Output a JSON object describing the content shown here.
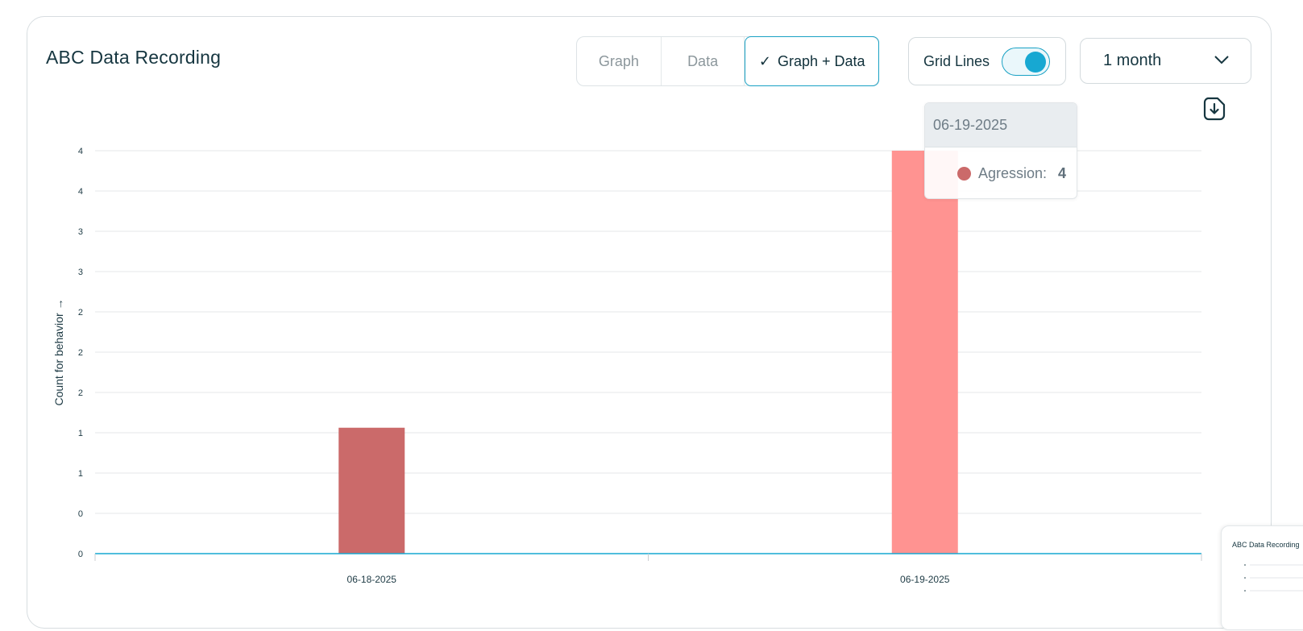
{
  "card": {
    "title": "ABC Data Recording"
  },
  "view_modes": {
    "graph_label": "Graph",
    "data_label": "Data",
    "graph_data_label": "Graph + Data",
    "active": "Graph + Data"
  },
  "grid_lines": {
    "label": "Grid Lines",
    "enabled": true
  },
  "range_select": {
    "value": "1 month"
  },
  "tooltip": {
    "date": "06-19-2025",
    "series_label": "Agression:",
    "value": "4"
  },
  "mini_card": {
    "title": "ABC Data Recording"
  },
  "colors": {
    "accent": "#17a8d2",
    "bar_primary": "#cb6a6a",
    "bar_highlight": "#ff9391"
  },
  "chart_data": {
    "type": "bar",
    "categories": [
      "06-18-2025",
      "06-19-2025"
    ],
    "series": [
      {
        "name": "Agression",
        "values": [
          1.25,
          4
        ]
      }
    ],
    "highlighted_category": "06-19-2025",
    "ylabel": "Count for behavior →",
    "xlabel": "",
    "ylim": [
      0,
      4
    ],
    "y_tick_labels": [
      "0",
      "0",
      "1",
      "1",
      "2",
      "2",
      "2",
      "3",
      "3",
      "4",
      "4"
    ],
    "grid": true
  }
}
